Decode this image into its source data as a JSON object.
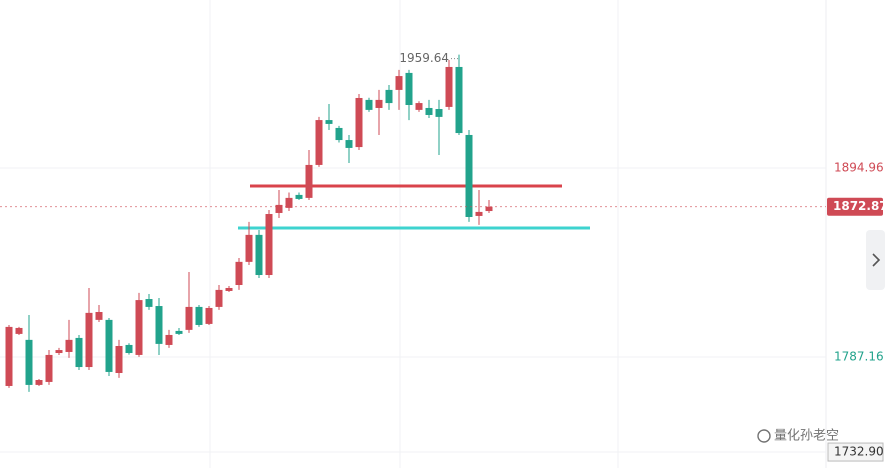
{
  "chart_data": {
    "type": "candlestick",
    "open": [
      1770.6,
      1800.3,
      1796.9,
      1771.2,
      1772.9,
      1789.4,
      1790.0,
      1798.0,
      1781.4,
      1808.3,
      1808.3,
      1778.0,
      1794.0,
      1788.3,
      1820.2,
      1816.2,
      1794.0,
      1802.0,
      1802.6,
      1815.7,
      1806.0,
      1815.7,
      1824.8,
      1828.2,
      1841.4,
      1856.8,
      1833.9,
      1869.3,
      1872.2,
      1879.6,
      1877.9,
      1896.7,
      1922.3,
      1917.8,
      1910.9,
      1906.9,
      1933.8,
      1929.2,
      1939.5,
      1939.5,
      1949.2,
      1928.1,
      1929.2,
      1928.6,
      1929.8,
      1952.6,
      1913.8,
      1867.6,
      1870.4
    ],
    "high": [
      1805.4,
      1804.3,
      1811.1,
      1774.6,
      1791.1,
      1792.3,
      1808.3,
      1799.7,
      1826.5,
      1816.8,
      1809.4,
      1796.9,
      1795.0,
      1823.7,
      1823.1,
      1820.8,
      1802.6,
      1803.7,
      1835.6,
      1816.8,
      1816.2,
      1828.2,
      1827.6,
      1843.6,
      1864.2,
      1859.6,
      1871.0,
      1882.4,
      1881.0,
      1881.0,
      1905.2,
      1924.1,
      1931.5,
      1919.0,
      1913.8,
      1937.2,
      1935.0,
      1939.5,
      1942.3,
      1950.9,
      1950.9,
      1933.0,
      1933.8,
      1933.8,
      1956.6,
      1959.64,
      1916.6,
      1882.4,
      1876.7
    ],
    "low": [
      1769.5,
      1799.7,
      1767.2,
      1770.6,
      1771.2,
      1788.3,
      1786.6,
      1779.7,
      1779.7,
      1807.1,
      1776.3,
      1775.2,
      1788.5,
      1787.2,
      1814.0,
      1788.3,
      1792.3,
      1799.7,
      1800.9,
      1804.3,
      1805.4,
      1814.0,
      1824.2,
      1825.4,
      1839.6,
      1832.2,
      1832.2,
      1866.4,
      1870.4,
      1876.7,
      1876.7,
      1895.6,
      1916.6,
      1909.5,
      1897.8,
      1905.2,
      1927.0,
      1913.8,
      1928.1,
      1928.1,
      1922.3,
      1927.0,
      1923.5,
      1902.4,
      1928.1,
      1913.8,
      1864.2,
      1862.5,
      1869.3
    ],
    "close": [
      1804.3,
      1803.7,
      1771.2,
      1774.0,
      1788.3,
      1791.1,
      1796.9,
      1781.4,
      1812.3,
      1812.8,
      1778.6,
      1793.4,
      1789.4,
      1819.6,
      1815.7,
      1794.6,
      1799.7,
      1800.3,
      1815.7,
      1805.4,
      1815.1,
      1825.4,
      1826.5,
      1841.4,
      1856.8,
      1833.9,
      1868.7,
      1873.9,
      1877.9,
      1877.3,
      1896.7,
      1922.3,
      1920.1,
      1910.9,
      1906.4,
      1934.9,
      1928.1,
      1933.8,
      1932.0,
      1947.4,
      1930.9,
      1932.0,
      1925.2,
      1924.1,
      1952.6,
      1914.9,
      1867.0,
      1869.9,
      1872.87
    ],
    "up_color": "#cf4a55",
    "down_color": "#22a38c",
    "ylim": [
      1723.8,
      1990.8
    ],
    "yticks": [
      1894.96,
      1787.16,
      {
        "value": 1732.9,
        "label": "1732.90"
      }
    ],
    "ytick_colors": [
      "#cf4a55",
      "#22a38c",
      "#333333"
    ],
    "last_price": 1872.87,
    "last_price_color": "#cf4a55",
    "levels": [
      {
        "value": 1884.69,
        "color": "#d9434b"
      },
      {
        "value": 1860.74,
        "color": "#3ed3cf"
      }
    ],
    "grid": true,
    "watermark": "量化孙老空"
  }
}
